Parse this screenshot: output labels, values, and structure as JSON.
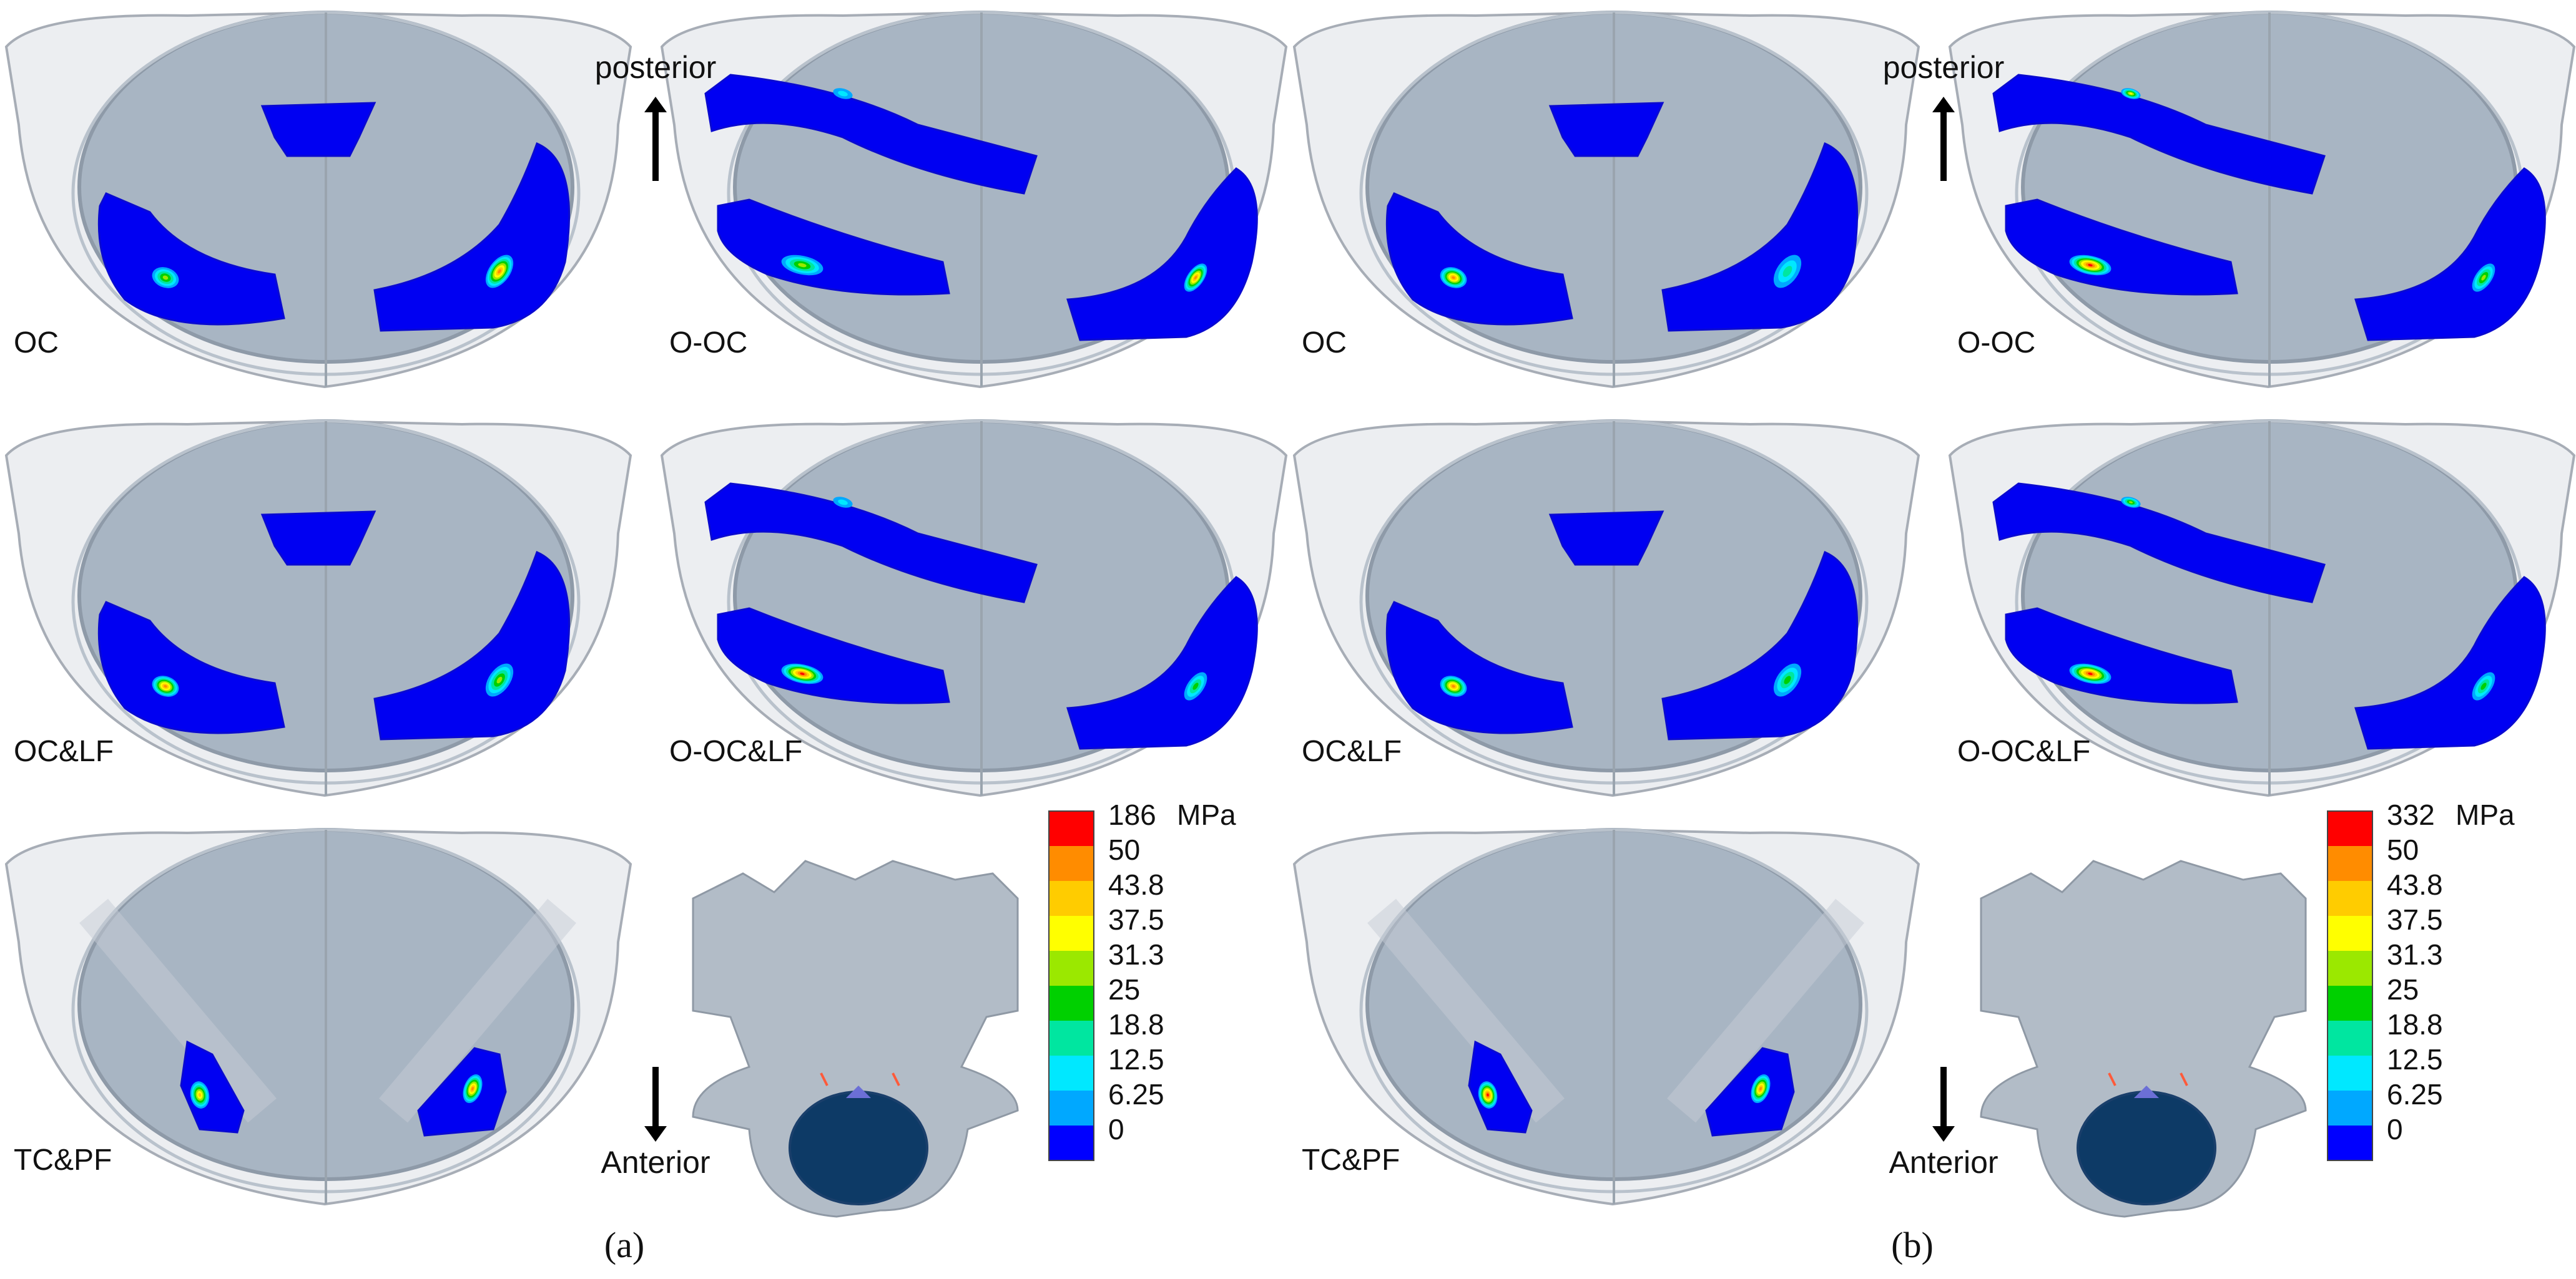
{
  "panels": [
    {
      "id": "a",
      "panel_label": "(a)",
      "direction_top": "posterior",
      "direction_bottom": "Anterior",
      "cases": [
        {
          "label": "OC",
          "pattern": "oc",
          "peaks": [
            0.55,
            0.85
          ]
        },
        {
          "label": "O-OC",
          "pattern": "ooc",
          "peaks": [
            0.25,
            0.6,
            0.9
          ]
        },
        {
          "label": "OC&LF",
          "pattern": "oc",
          "peaks": [
            0.85,
            0.5
          ]
        },
        {
          "label": "O-OC&LF",
          "pattern": "ooc",
          "peaks": [
            0.2,
            0.95,
            0.4
          ]
        },
        {
          "label": "TC&PF",
          "pattern": "tc",
          "peaks": [
            0.8,
            0.9
          ]
        }
      ],
      "colorbar": {
        "max_label": "186",
        "unit": "MPa",
        "ticks": [
          "50",
          "43.8",
          "37.5",
          "31.3",
          "25",
          "18.8",
          "12.5",
          "6.25",
          "0"
        ]
      }
    },
    {
      "id": "b",
      "panel_label": "(b)",
      "direction_top": "posterior",
      "direction_bottom": "Anterior",
      "cases": [
        {
          "label": "OC",
          "pattern": "oc",
          "peaks": [
            0.9,
            0.3
          ]
        },
        {
          "label": "O-OC",
          "pattern": "ooc",
          "peaks": [
            0.7,
            0.95,
            0.5
          ]
        },
        {
          "label": "OC&LF",
          "pattern": "oc",
          "peaks": [
            0.9,
            0.4
          ]
        },
        {
          "label": "O-OC&LF",
          "pattern": "ooc",
          "peaks": [
            0.5,
            0.95,
            0.4
          ]
        },
        {
          "label": "TC&PF",
          "pattern": "tc",
          "peaks": [
            0.95,
            0.85
          ]
        }
      ],
      "colorbar": {
        "max_label": "332",
        "unit": "MPa",
        "ticks": [
          "50",
          "43.8",
          "37.5",
          "31.3",
          "25",
          "18.8",
          "12.5",
          "6.25",
          "0"
        ]
      }
    }
  ],
  "colors": {
    "scale": [
      "#ff0000",
      "#ff8c00",
      "#ffcc00",
      "#ffff00",
      "#9be800",
      "#00d000",
      "#00e6a0",
      "#00e8ff",
      "#00a8ff",
      "#0000ff"
    ],
    "contact_base": "#0000f2",
    "endplate": "#a8b5c3",
    "canal": "#0d3a66"
  }
}
